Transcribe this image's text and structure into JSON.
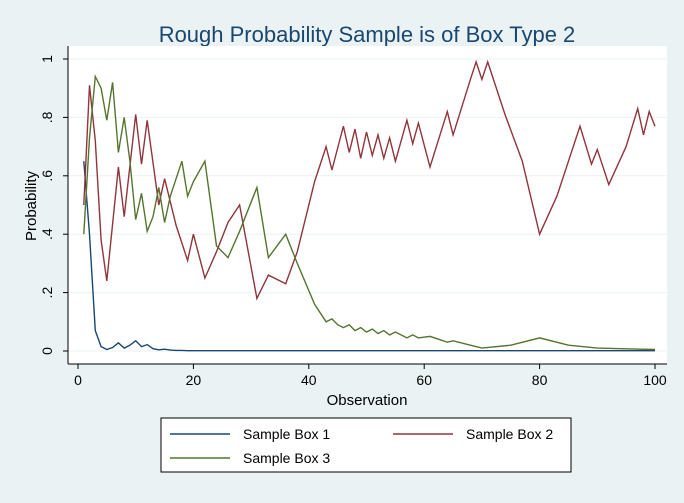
{
  "chart_data": {
    "type": "line",
    "title": "Rough Probability Sample is of Box Type 2",
    "xlabel": "Observation",
    "ylabel": "Probability",
    "xlim": [
      0,
      100
    ],
    "ylim": [
      0,
      1
    ],
    "xticks": [
      0,
      20,
      40,
      60,
      80,
      100
    ],
    "yticks": [
      0,
      0.2,
      0.4,
      0.6,
      0.8,
      1
    ],
    "ytick_labels": [
      "0",
      ".2",
      ".4",
      ".6",
      ".8",
      "1"
    ],
    "grid": "horizontal",
    "legend_position": "bottom",
    "series": [
      {
        "name": "Sample Box 1",
        "color": "#1a476f",
        "x": [
          1,
          2,
          3,
          4,
          5,
          6,
          7,
          8,
          9,
          10,
          11,
          12,
          13,
          14,
          15,
          16,
          17,
          18,
          19,
          20,
          25,
          30,
          40,
          50,
          60,
          70,
          80,
          90,
          100
        ],
        "y": [
          0.65,
          0.4,
          0.07,
          0.015,
          0.005,
          0.012,
          0.028,
          0.01,
          0.02,
          0.035,
          0.015,
          0.022,
          0.008,
          0.004,
          0.006,
          0.003,
          0.002,
          0.002,
          0.001,
          0.001,
          0.001,
          0.001,
          0.001,
          0.001,
          0.001,
          0.001,
          0.001,
          0.001,
          0.001
        ]
      },
      {
        "name": "Sample Box 2",
        "color": "#90353b",
        "x": [
          1,
          2,
          3,
          4,
          5,
          7,
          8,
          10,
          11,
          12,
          14,
          15,
          17,
          19,
          20,
          22,
          24,
          26,
          28,
          31,
          33,
          36,
          38,
          41,
          43,
          44,
          46,
          47,
          48,
          49,
          50,
          51,
          52,
          53,
          54,
          55,
          57,
          58,
          59,
          61,
          64,
          65,
          68,
          69,
          70,
          71,
          74,
          77,
          80,
          83,
          87,
          89,
          90,
          92,
          95,
          97,
          98,
          99,
          100
        ],
        "y": [
          0.5,
          0.91,
          0.72,
          0.38,
          0.24,
          0.63,
          0.46,
          0.81,
          0.64,
          0.79,
          0.5,
          0.59,
          0.43,
          0.31,
          0.4,
          0.25,
          0.34,
          0.44,
          0.5,
          0.18,
          0.26,
          0.23,
          0.34,
          0.58,
          0.7,
          0.62,
          0.77,
          0.68,
          0.76,
          0.66,
          0.75,
          0.67,
          0.74,
          0.66,
          0.73,
          0.65,
          0.79,
          0.71,
          0.78,
          0.63,
          0.82,
          0.74,
          0.93,
          0.99,
          0.93,
          0.99,
          0.81,
          0.65,
          0.4,
          0.53,
          0.77,
          0.64,
          0.69,
          0.57,
          0.7,
          0.83,
          0.74,
          0.82,
          0.77
        ]
      },
      {
        "name": "Sample Box 3",
        "color": "#55752f",
        "x": [
          1,
          2,
          3,
          4,
          5,
          6,
          7,
          8,
          9,
          10,
          11,
          12,
          13,
          14,
          15,
          16,
          17,
          18,
          19,
          20,
          22,
          24,
          26,
          28,
          31,
          33,
          36,
          38,
          41,
          43,
          44,
          45,
          46,
          47,
          48,
          49,
          50,
          51,
          52,
          53,
          54,
          55,
          57,
          58,
          59,
          61,
          64,
          65,
          68,
          70,
          75,
          80,
          85,
          90,
          100
        ],
        "y": [
          0.4,
          0.73,
          0.94,
          0.9,
          0.79,
          0.92,
          0.68,
          0.8,
          0.65,
          0.45,
          0.54,
          0.41,
          0.46,
          0.56,
          0.44,
          0.53,
          0.59,
          0.65,
          0.53,
          0.58,
          0.65,
          0.36,
          0.32,
          0.41,
          0.56,
          0.32,
          0.4,
          0.3,
          0.16,
          0.1,
          0.11,
          0.09,
          0.08,
          0.09,
          0.07,
          0.08,
          0.065,
          0.075,
          0.06,
          0.07,
          0.055,
          0.065,
          0.045,
          0.055,
          0.045,
          0.05,
          0.03,
          0.035,
          0.02,
          0.01,
          0.02,
          0.045,
          0.02,
          0.01,
          0.005
        ]
      }
    ]
  }
}
